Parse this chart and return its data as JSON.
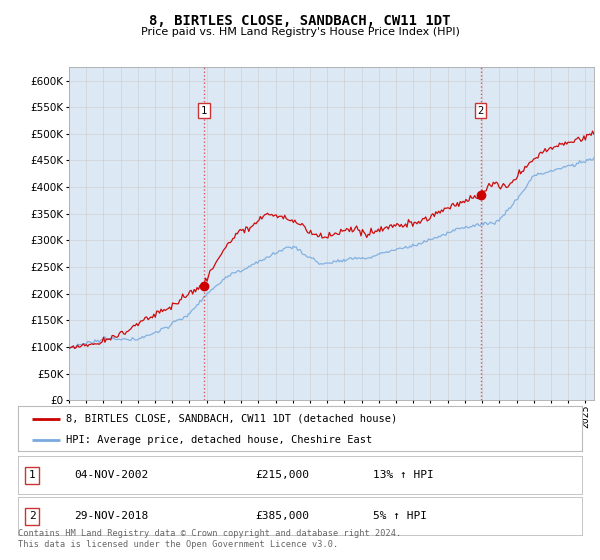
{
  "title": "8, BIRTLES CLOSE, SANDBACH, CW11 1DT",
  "subtitle": "Price paid vs. HM Land Registry's House Price Index (HPI)",
  "plot_bg_color": "#dce9f5",
  "ylim": [
    0,
    625000
  ],
  "yticks": [
    0,
    50000,
    100000,
    150000,
    200000,
    250000,
    300000,
    350000,
    400000,
    450000,
    500000,
    550000,
    600000
  ],
  "sale1_date_num": 2002.84,
  "sale1_price": 215000,
  "sale1_label": "1",
  "sale2_date_num": 2018.91,
  "sale2_price": 385000,
  "sale2_label": "2",
  "red_line_color": "#cc0000",
  "blue_line_color": "#7aaadd",
  "red_dot_color": "#cc0000",
  "grid_color": "#cccccc",
  "dashed_line_color": "#dd4444",
  "legend_entries": [
    "8, BIRTLES CLOSE, SANDBACH, CW11 1DT (detached house)",
    "HPI: Average price, detached house, Cheshire East"
  ],
  "table_rows": [
    [
      "1",
      "04-NOV-2002",
      "£215,000",
      "13% ↑ HPI"
    ],
    [
      "2",
      "29-NOV-2018",
      "£385,000",
      "5% ↑ HPI"
    ]
  ],
  "footer": "Contains HM Land Registry data © Crown copyright and database right 2024.\nThis data is licensed under the Open Government Licence v3.0.",
  "xmin": 1995.0,
  "xmax": 2025.5
}
